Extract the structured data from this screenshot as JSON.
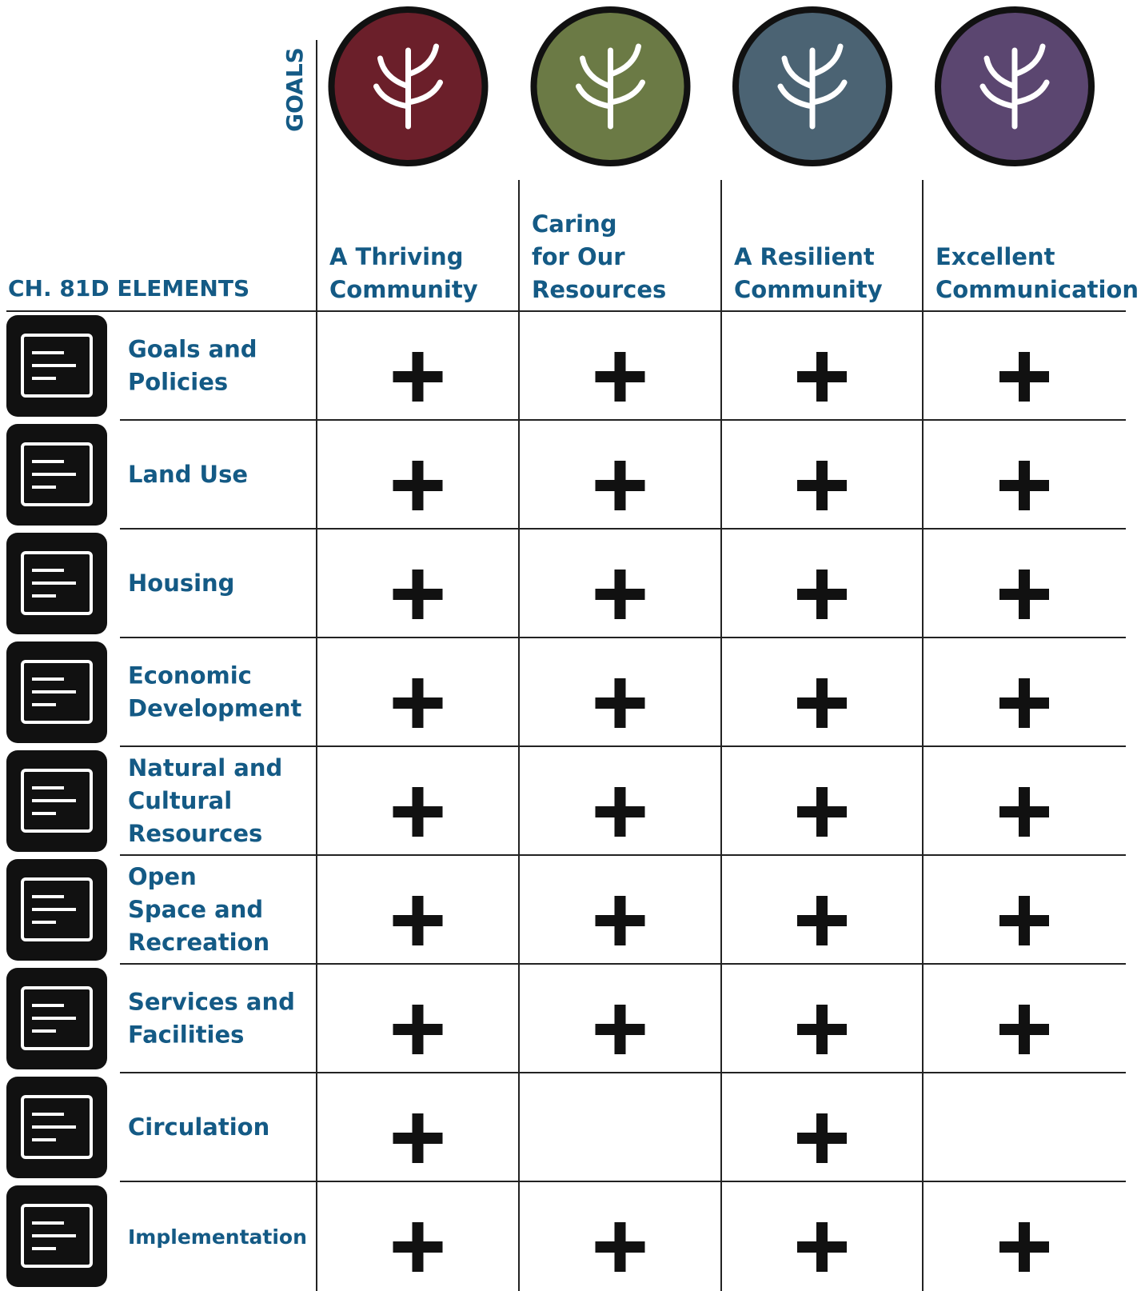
{
  "axis_label": "GOALS",
  "corner_label": "CH. 81D ELEMENTS",
  "goals": [
    {
      "title_lines": [
        "A Thriving",
        "Community"
      ],
      "color": "#6b1f2a"
    },
    {
      "title_lines": [
        "Caring",
        "for Our",
        "Resources"
      ],
      "color": "#6b7a45"
    },
    {
      "title_lines": [
        "A Resilient",
        "Community"
      ],
      "color": "#4b6373"
    },
    {
      "title_lines": [
        "Excellent",
        "Communication"
      ],
      "color": "#5b4670"
    }
  ],
  "elements": [
    {
      "name_lines": [
        "Goals and",
        "Policies"
      ],
      "marks": [
        true,
        true,
        true,
        true
      ]
    },
    {
      "name_lines": [
        "Land Use"
      ],
      "marks": [
        true,
        true,
        true,
        true
      ]
    },
    {
      "name_lines": [
        "Housing"
      ],
      "marks": [
        true,
        true,
        true,
        true
      ]
    },
    {
      "name_lines": [
        "Economic",
        "Development"
      ],
      "marks": [
        true,
        true,
        true,
        true
      ]
    },
    {
      "name_lines": [
        "Natural and",
        "Cultural",
        "Resources"
      ],
      "marks": [
        true,
        true,
        true,
        true
      ]
    },
    {
      "name_lines": [
        "Open",
        "Space and",
        "Recreation"
      ],
      "marks": [
        true,
        true,
        true,
        true
      ]
    },
    {
      "name_lines": [
        "Services and",
        "Facilities"
      ],
      "marks": [
        true,
        true,
        true,
        true
      ]
    },
    {
      "name_lines": [
        "Circulation"
      ],
      "marks": [
        true,
        false,
        true,
        false
      ]
    },
    {
      "name_lines": [
        "Implementation"
      ],
      "marks": [
        true,
        true,
        true,
        true
      ]
    }
  ]
}
